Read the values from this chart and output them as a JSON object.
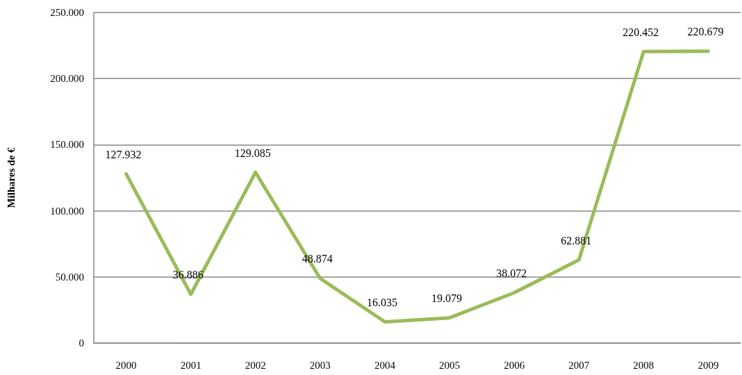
{
  "chart_data": {
    "type": "line",
    "ylabel": "Milhares de €",
    "categories": [
      "2000",
      "2001",
      "2002",
      "2003",
      "2004",
      "2005",
      "2006",
      "2007",
      "2008",
      "2009"
    ],
    "series": [
      {
        "color": "#9bbb59",
        "values": [
          127932,
          36886,
          129085,
          48874,
          16035,
          19079,
          38072,
          62881,
          220452,
          220679
        ],
        "value_labels": [
          "127.932",
          "36.886",
          "129.085",
          "48.874",
          "16.035",
          "19.079",
          "38.072",
          "62.881",
          "220.452",
          "220.679"
        ]
      }
    ],
    "ylim": [
      0,
      250000
    ],
    "yticks": [
      0,
      {
        "value": 50000,
        "label": "50.000"
      },
      {
        "value": 100000,
        "label": "100.000"
      },
      {
        "value": 150000,
        "label": "150.000"
      },
      {
        "value": 200000,
        "label": "200.000"
      },
      {
        "value": 250000,
        "label": "250.000"
      }
    ],
    "grid": "y",
    "marker": "none",
    "line_style": "solid"
  }
}
